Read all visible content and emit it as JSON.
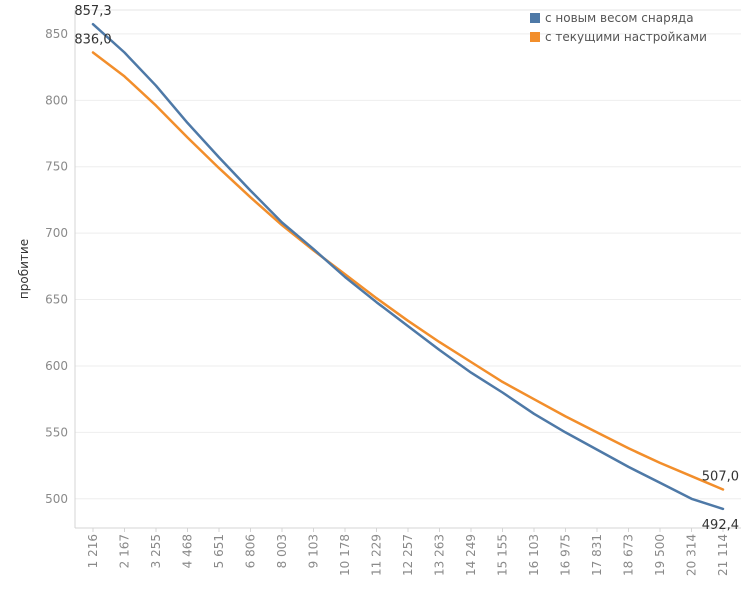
{
  "chart_data": {
    "type": "line",
    "title": "",
    "xlabel": "",
    "ylabel": "пробитие",
    "ylim": [
      478,
      868
    ],
    "yticks": [
      500,
      550,
      600,
      650,
      700,
      750,
      800,
      850
    ],
    "ytick_labels": [
      "500",
      "550",
      "600",
      "650",
      "700",
      "750",
      "800",
      "850"
    ],
    "categories": [
      "1 216",
      "2 167",
      "3 255",
      "4 468",
      "5 651",
      "6 806",
      "8 003",
      "9 103",
      "10 178",
      "11 229",
      "12 257",
      "13 263",
      "14 249",
      "15 155",
      "16 103",
      "16 975",
      "17 831",
      "18 673",
      "19 500",
      "20 314",
      "21 114"
    ],
    "grid": true,
    "legend_position": "top-right",
    "series": [
      {
        "name": "с новым весом снаряда",
        "color": "#4e79a7",
        "values": [
          857.3,
          836,
          811,
          783,
          757,
          732,
          708,
          688,
          667,
          648,
          630,
          612,
          595,
          580,
          564,
          550,
          537,
          524,
          512,
          500,
          492.4
        ]
      },
      {
        "name": "с текущими настройками",
        "color": "#f28e2b",
        "values": [
          836.0,
          818,
          796,
          772,
          749,
          727,
          706,
          687,
          669,
          651,
          634,
          618,
          603,
          588,
          575,
          562,
          550,
          538,
          527,
          517,
          507.0
        ]
      }
    ],
    "annotations": [
      {
        "series": 0,
        "index": 0,
        "text": "857,3",
        "position": "above"
      },
      {
        "series": 1,
        "index": 0,
        "text": "836,0",
        "position": "above"
      },
      {
        "series": 1,
        "index": 20,
        "text": "507,0",
        "position": "above-left"
      },
      {
        "series": 0,
        "index": 20,
        "text": "492,4",
        "position": "below-left"
      }
    ]
  }
}
